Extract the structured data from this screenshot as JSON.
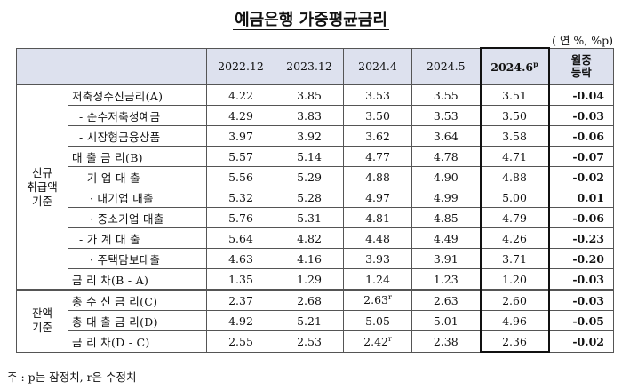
{
  "title": "예금은행 가중평균금리",
  "unit": "( 연 %, %p)",
  "columns": [
    "2022.12",
    "2023.12",
    "2024.4",
    "2024.5",
    "2024.6",
    "월중\n등락"
  ],
  "col_prelim_mark": "p",
  "change_header_line1": "월중",
  "change_header_line2": "등락",
  "groups": {
    "new": [
      "신규",
      "취급액",
      "기준"
    ],
    "balance": [
      "잔액",
      "기준"
    ]
  },
  "rows": [
    {
      "label": "저축성수신금리(A)",
      "v": [
        "4.22",
        "3.85",
        "3.53",
        "3.55",
        "3.51",
        "-0.04"
      ]
    },
    {
      "label": "- 순수저축성예금",
      "v": [
        "4.29",
        "3.83",
        "3.50",
        "3.53",
        "3.50",
        "-0.03"
      ]
    },
    {
      "label": "- 시장형금융상품",
      "v": [
        "3.97",
        "3.92",
        "3.62",
        "3.64",
        "3.58",
        "-0.06"
      ]
    },
    {
      "label": "대 출 금 리(B)",
      "v": [
        "5.57",
        "5.14",
        "4.77",
        "4.78",
        "4.71",
        "-0.07"
      ]
    },
    {
      "label": "- 기 업 대 출",
      "v": [
        "5.56",
        "5.29",
        "4.88",
        "4.90",
        "4.88",
        "-0.02"
      ]
    },
    {
      "label": "· 대기업 대출",
      "v": [
        "5.32",
        "5.28",
        "4.97",
        "4.99",
        "5.00",
        "0.01"
      ]
    },
    {
      "label": "· 중소기업 대출",
      "v": [
        "5.76",
        "5.31",
        "4.81",
        "4.85",
        "4.79",
        "-0.06"
      ]
    },
    {
      "label": "- 가 계 대 출",
      "v": [
        "5.64",
        "4.82",
        "4.48",
        "4.49",
        "4.26",
        "-0.23"
      ]
    },
    {
      "label": "· 주택담보대출",
      "v": [
        "4.63",
        "4.16",
        "3.93",
        "3.91",
        "3.71",
        "-0.20"
      ]
    },
    {
      "label": "금 리 차(B - A)",
      "v": [
        "1.35",
        "1.29",
        "1.24",
        "1.23",
        "1.20",
        "-0.03"
      ]
    },
    {
      "label": "총 수 신 금 리(C)",
      "v": [
        "2.37",
        "2.68",
        "2.63",
        "2.63",
        "2.60",
        "-0.03"
      ]
    },
    {
      "label": "총 대 출 금 리(D)",
      "v": [
        "4.92",
        "5.21",
        "5.05",
        "5.01",
        "4.96",
        "-0.05"
      ]
    },
    {
      "label": "금 리 차(D - C)",
      "v": [
        "2.55",
        "2.53",
        "2.42",
        "2.38",
        "2.36",
        "-0.02"
      ]
    }
  ],
  "revised_mark": "r",
  "note": "주 : p는 잠정치, r은 수정치"
}
